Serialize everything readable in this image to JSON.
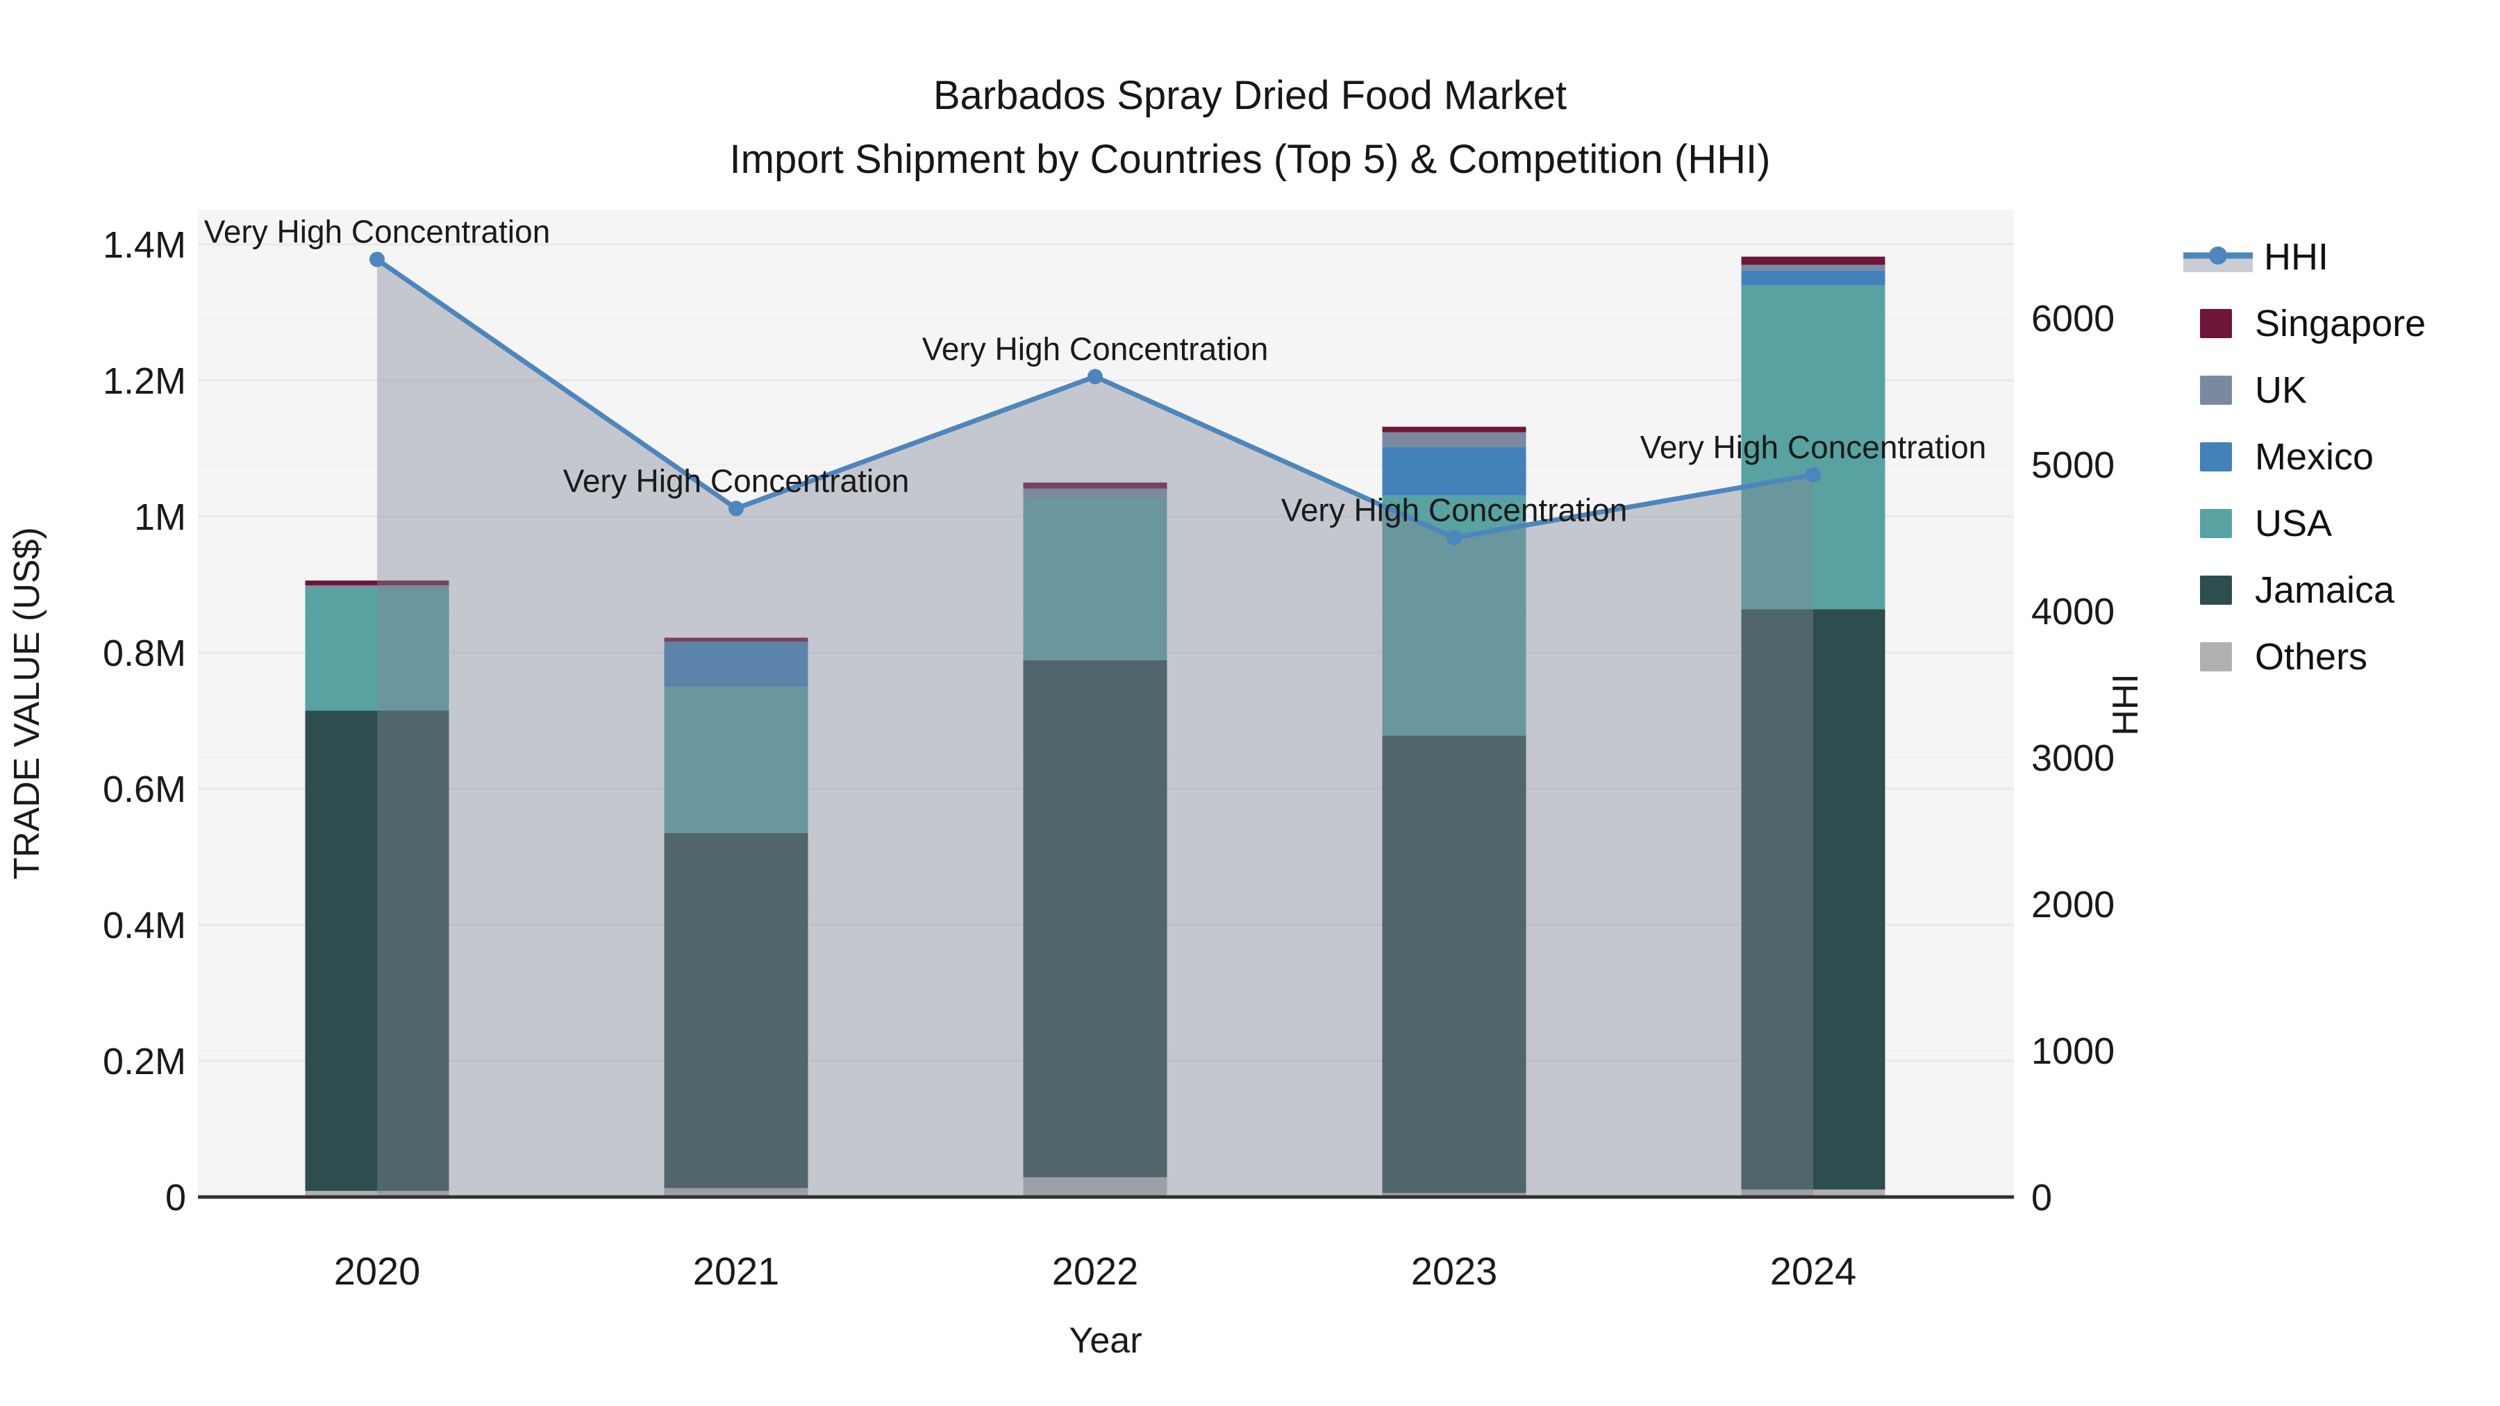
{
  "title": {
    "line1": "Barbados Spray Dried Food Market",
    "line2": "Import Shipment by Countries (Top 5) & Competition (HHI)"
  },
  "axes": {
    "x": {
      "label": "Year",
      "ticks": [
        "2020",
        "2021",
        "2022",
        "2023",
        "2024"
      ]
    },
    "y_left": {
      "label": "TRADE VALUE (US$)",
      "ticks": [
        "0",
        "0.2M",
        "0.4M",
        "0.6M",
        "0.8M",
        "1M",
        "1.2M",
        "1.4M"
      ],
      "tick_values": [
        0,
        200000,
        400000,
        600000,
        800000,
        1000000,
        1200000,
        1400000
      ]
    },
    "y_right": {
      "label": "HHI",
      "ticks": [
        "0",
        "1000",
        "2000",
        "3000",
        "4000",
        "5000",
        "6000"
      ],
      "tick_values": [
        0,
        1000,
        2000,
        3000,
        4000,
        5000,
        6000
      ]
    }
  },
  "legend": {
    "items": [
      {
        "label": "HHI",
        "type": "line",
        "color_key": "hhi_line"
      },
      {
        "label": "Singapore",
        "type": "patch",
        "color_key": "singapore"
      },
      {
        "label": "UK",
        "type": "patch",
        "color_key": "uk"
      },
      {
        "label": "Mexico",
        "type": "patch",
        "color_key": "mexico"
      },
      {
        "label": "USA",
        "type": "patch",
        "color_key": "usa"
      },
      {
        "label": "Jamaica",
        "type": "patch",
        "color_key": "jamaica"
      },
      {
        "label": "Others",
        "type": "patch",
        "color_key": "others"
      }
    ]
  },
  "chart_data": {
    "type": "combo",
    "bar_type": "stacked",
    "categories": [
      "2020",
      "2021",
      "2022",
      "2023",
      "2024"
    ],
    "series": [
      {
        "name": "Others",
        "color_key": "others",
        "values": [
          9000,
          13000,
          29000,
          6000,
          11000
        ]
      },
      {
        "name": "Jamaica",
        "color_key": "jamaica",
        "values": [
          706000,
          522000,
          760000,
          672000,
          853000
        ]
      },
      {
        "name": "USA",
        "color_key": "usa",
        "values": [
          180000,
          215000,
          238000,
          353000,
          476000
        ]
      },
      {
        "name": "Mexico",
        "color_key": "mexico",
        "values": [
          0,
          66000,
          0,
          71000,
          22000
        ]
      },
      {
        "name": "UK",
        "color_key": "uk",
        "values": [
          4000,
          0,
          14000,
          22000,
          8000
        ]
      },
      {
        "name": "Singapore",
        "color_key": "singapore",
        "values": [
          7000,
          6000,
          9000,
          8000,
          12000
        ]
      }
    ],
    "bar_totals": [
      906000,
      822000,
      1050000,
      1132000,
      1382000
    ],
    "line_series": {
      "name": "HHI",
      "axis": "right",
      "values": [
        6400,
        4700,
        5600,
        4500,
        4930
      ],
      "area_fill_to_zero": true
    },
    "annotations": [
      "Very High Concentration",
      "Very High Concentration",
      "Very High Concentration",
      "Very High Concentration",
      "Very High Concentration"
    ],
    "xlabel": "Year",
    "ylabel_left": "TRADE VALUE (US$)",
    "ylabel_right": "HHI",
    "ylim_left": [
      0,
      1400000
    ],
    "ylim_right": [
      0,
      6740
    ],
    "grid": true,
    "legend_position": "right"
  },
  "colors": {
    "singapore": "#6d1637",
    "uk": "#7b89a0",
    "mexico": "#4281ba",
    "usa": "#58a2a2",
    "jamaica": "#2d4d4e",
    "others": "#b0b0b2",
    "hhi_line": "#4d86bd",
    "band_fill": "rgba(128,137,150,0.42)",
    "plot_bg": "#f5f5f5",
    "grid_major": "#e9e9e9",
    "grid_minor": "#efefef",
    "axis_line": "#2f2f2f",
    "text": "#1a1a1a"
  }
}
